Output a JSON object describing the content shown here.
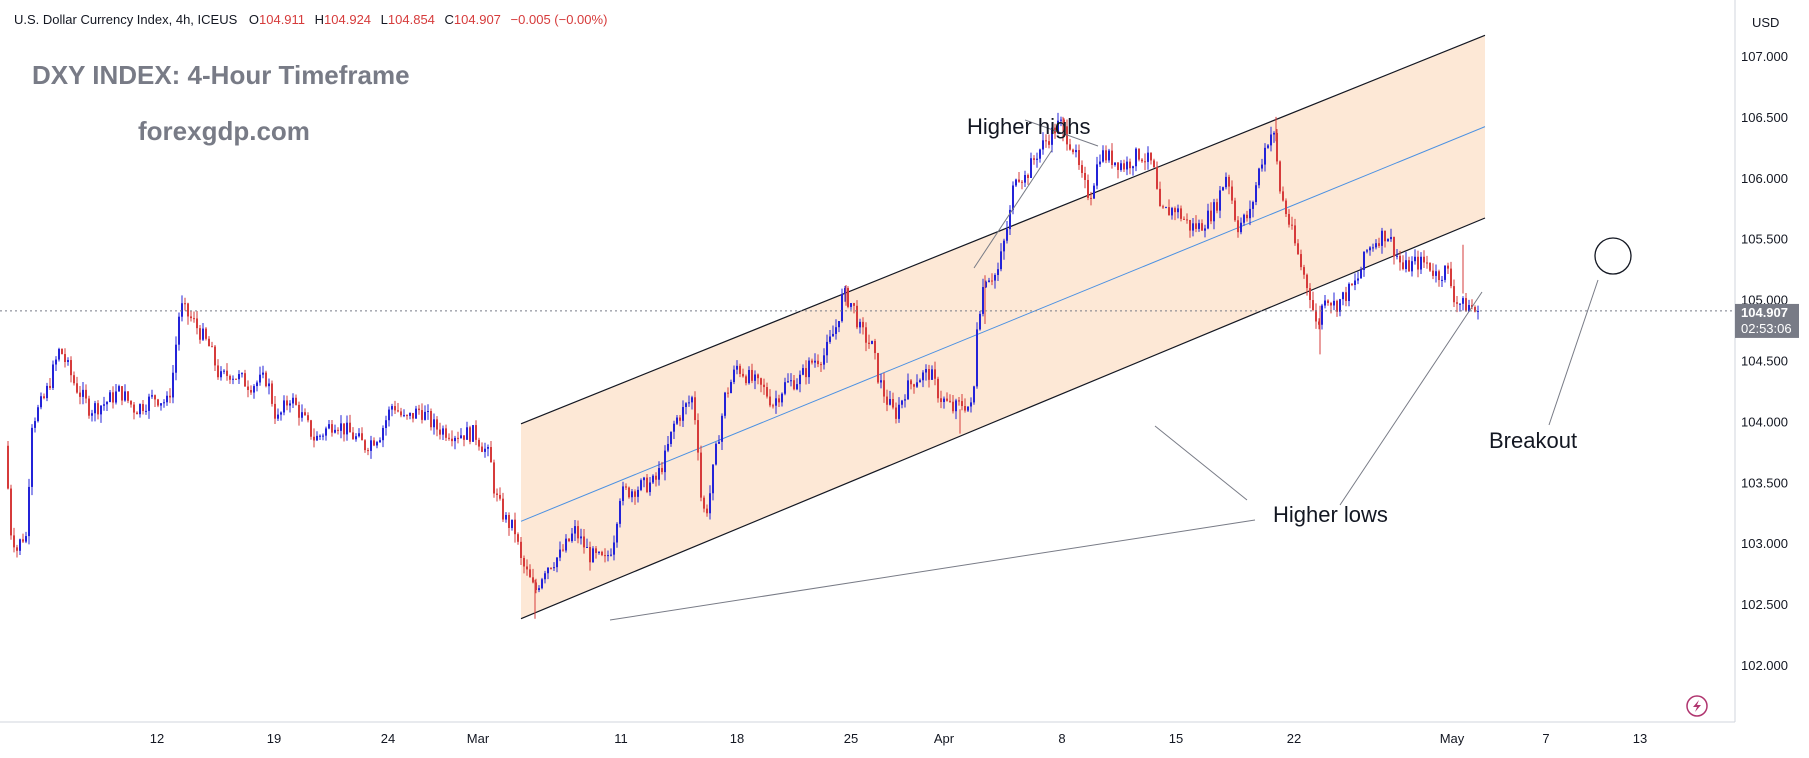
{
  "header": {
    "symbol_line": "U.S. Dollar Currency Index, 4h, ICEUS",
    "open_label": "O",
    "open_value": "104.911",
    "high_label": "H",
    "high_value": "104.924",
    "low_label": "L",
    "low_value": "104.854",
    "close_label": "C",
    "close_value": "104.907",
    "change": "−0.005 (−0.00%)"
  },
  "overlay": {
    "heading": "DXY INDEX: 4-Hour Timeframe",
    "watermark": "forexgdp.com"
  },
  "annotations": {
    "higher_highs": "Higher highs",
    "higher_lows": "Higher lows",
    "breakout": "Breakout"
  },
  "price_scale": {
    "currency": "USD",
    "last_price": "104.907",
    "countdown": "02:53:06"
  },
  "colors": {
    "up": "#2323d8",
    "down": "#d63b3b",
    "channel_fill": "#fde4cf",
    "midline": "#4a90e2",
    "last_price_tag": "#787b86"
  },
  "chart_data": {
    "type": "candlestick",
    "title": "DXY INDEX: 4-Hour Timeframe",
    "series_name": "U.S. Dollar Currency Index, 4h, ICEUS",
    "ylim": [
      101.5,
      107.3
    ],
    "y_ticks": [
      "107.000",
      "106.500",
      "106.000",
      "105.500",
      "105.000",
      "104.500",
      "104.000",
      "103.500",
      "103.000",
      "102.500",
      "102.000"
    ],
    "x_ticks": [
      "12",
      "19",
      "24",
      "Mar",
      "11",
      "18",
      "25",
      "Apr",
      "8",
      "15",
      "22",
      "May",
      "7",
      "13"
    ],
    "last_price": 104.907,
    "price_path": [
      [
        0,
        103.8
      ],
      [
        6,
        103.1
      ],
      [
        12,
        102.95
      ],
      [
        17,
        103.05
      ],
      [
        21,
        103.05
      ],
      [
        27,
        104.0
      ],
      [
        40,
        104.2
      ],
      [
        55,
        104.6
      ],
      [
        70,
        104.3
      ],
      [
        85,
        104.1
      ],
      [
        100,
        104.15
      ],
      [
        115,
        104.25
      ],
      [
        130,
        104.1
      ],
      [
        150,
        104.2
      ],
      [
        163,
        104.15
      ],
      [
        168,
        104.4
      ],
      [
        175,
        104.95
      ],
      [
        190,
        104.8
      ],
      [
        205,
        104.6
      ],
      [
        215,
        104.35
      ],
      [
        225,
        104.4
      ],
      [
        245,
        104.3
      ],
      [
        262,
        104.35
      ],
      [
        272,
        104.0
      ],
      [
        285,
        104.2
      ],
      [
        300,
        104.0
      ],
      [
        310,
        103.85
      ],
      [
        330,
        104.0
      ],
      [
        345,
        103.9
      ],
      [
        360,
        103.8
      ],
      [
        375,
        103.9
      ],
      [
        388,
        104.15
      ],
      [
        400,
        104.0
      ],
      [
        415,
        104.1
      ],
      [
        430,
        103.95
      ],
      [
        450,
        103.9
      ],
      [
        470,
        103.9
      ],
      [
        485,
        103.7
      ],
      [
        490,
        103.4
      ],
      [
        500,
        103.2
      ],
      [
        510,
        103.1
      ],
      [
        516,
        102.85
      ],
      [
        522,
        102.75
      ],
      [
        530,
        102.6
      ],
      [
        540,
        102.8
      ],
      [
        555,
        102.9
      ],
      [
        570,
        103.1
      ],
      [
        585,
        102.9
      ],
      [
        600,
        102.85
      ],
      [
        608,
        103.0
      ],
      [
        615,
        103.4
      ],
      [
        630,
        103.45
      ],
      [
        650,
        103.5
      ],
      [
        660,
        103.7
      ],
      [
        670,
        104.0
      ],
      [
        688,
        104.2
      ],
      [
        693,
        103.8
      ],
      [
        697,
        103.25
      ],
      [
        703,
        103.3
      ],
      [
        710,
        103.7
      ],
      [
        720,
        104.2
      ],
      [
        732,
        104.45
      ],
      [
        745,
        104.35
      ],
      [
        760,
        104.25
      ],
      [
        768,
        104.15
      ],
      [
        780,
        104.3
      ],
      [
        795,
        104.35
      ],
      [
        808,
        104.5
      ],
      [
        820,
        104.55
      ],
      [
        832,
        104.8
      ],
      [
        838,
        105.05
      ],
      [
        848,
        104.95
      ],
      [
        855,
        104.75
      ],
      [
        868,
        104.6
      ],
      [
        872,
        104.4
      ],
      [
        880,
        104.2
      ],
      [
        890,
        104.05
      ],
      [
        900,
        104.25
      ],
      [
        910,
        104.35
      ],
      [
        925,
        104.4
      ],
      [
        935,
        104.2
      ],
      [
        948,
        104.1
      ],
      [
        958,
        104.15
      ],
      [
        968,
        104.1
      ],
      [
        972,
        104.8
      ],
      [
        980,
        105.2
      ],
      [
        992,
        105.2
      ],
      [
        1000,
        105.5
      ],
      [
        1006,
        105.75
      ],
      [
        1010,
        106.05
      ],
      [
        1020,
        106.0
      ],
      [
        1032,
        106.2
      ],
      [
        1045,
        106.35
      ],
      [
        1055,
        106.45
      ],
      [
        1068,
        106.25
      ],
      [
        1078,
        105.95
      ],
      [
        1085,
        105.85
      ],
      [
        1095,
        106.2
      ],
      [
        1108,
        106.15
      ],
      [
        1120,
        106.1
      ],
      [
        1135,
        106.2
      ],
      [
        1148,
        106.1
      ],
      [
        1155,
        105.7
      ],
      [
        1170,
        105.75
      ],
      [
        1185,
        105.6
      ],
      [
        1195,
        105.6
      ],
      [
        1210,
        105.75
      ],
      [
        1222,
        106.05
      ],
      [
        1232,
        105.6
      ],
      [
        1245,
        105.7
      ],
      [
        1255,
        106.1
      ],
      [
        1262,
        106.3
      ],
      [
        1268,
        106.4
      ],
      [
        1275,
        105.9
      ],
      [
        1285,
        105.6
      ],
      [
        1295,
        105.3
      ],
      [
        1305,
        105.05
      ],
      [
        1312,
        104.75
      ],
      [
        1320,
        105.05
      ],
      [
        1330,
        104.95
      ],
      [
        1342,
        105.05
      ],
      [
        1352,
        105.15
      ],
      [
        1362,
        105.4
      ],
      [
        1372,
        105.5
      ],
      [
        1382,
        105.55
      ],
      [
        1390,
        105.4
      ],
      [
        1398,
        105.25
      ],
      [
        1410,
        105.3
      ],
      [
        1422,
        105.3
      ],
      [
        1432,
        105.2
      ],
      [
        1442,
        105.25
      ],
      [
        1450,
        105.0
      ],
      [
        1458,
        104.95
      ],
      [
        1466,
        104.95
      ],
      [
        1470,
        104.907
      ]
    ],
    "channel": {
      "lower": [
        [
          514,
          102.38
        ],
        [
          1478,
          105.67
        ]
      ],
      "upper": [
        [
          514,
          103.98
        ],
        [
          1478,
          107.17
        ]
      ],
      "mid": [
        [
          514,
          103.18
        ],
        [
          1478,
          106.42
        ]
      ]
    },
    "annotations": [
      "Higher highs",
      "Higher lows",
      "Breakout"
    ]
  }
}
